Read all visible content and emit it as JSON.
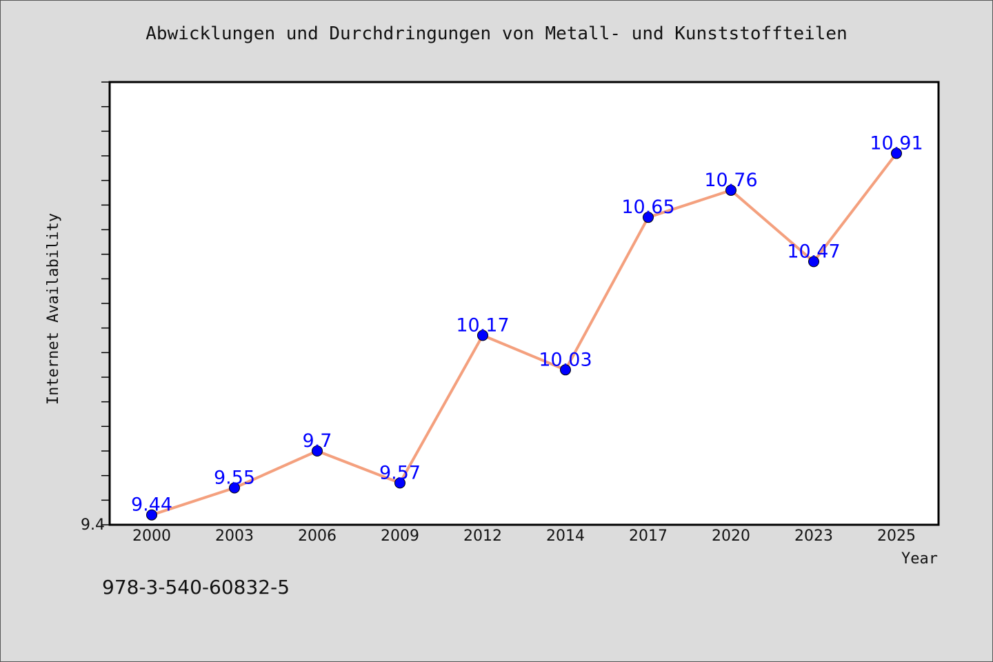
{
  "title": "Abwicklungen und Durchdringungen von Metall- und Kunststoffteilen",
  "footer_text": "978-3-540-60832-5",
  "colors": {
    "background": "#dcdcdc",
    "plot_background": "#ffffff",
    "line": "#f4a07e",
    "marker": "#0000ff",
    "data_label": "#0000ff"
  },
  "chart_data": {
    "type": "line",
    "title": "Abwicklungen und Durchdringungen von Metall- und Kunststoffteilen",
    "xlabel": "Year",
    "ylabel": "Internet Availability",
    "categories": [
      "2000",
      "2003",
      "2006",
      "2009",
      "2012",
      "2014",
      "2017",
      "2020",
      "2023",
      "2025"
    ],
    "series": [
      {
        "values": [
          9.44,
          9.55,
          9.7,
          9.57,
          10.17,
          10.03,
          10.65,
          10.76,
          10.47,
          10.91
        ]
      }
    ],
    "data_labels": [
      "9.44",
      "9.55",
      "9.7",
      "9.57",
      "10.17",
      "10.03",
      "10.65",
      "10.76",
      "10.47",
      "10.91"
    ],
    "y_tick_label": "9.4",
    "ylim": [
      9.4,
      11.2
    ],
    "grid": false,
    "legend": "none"
  }
}
